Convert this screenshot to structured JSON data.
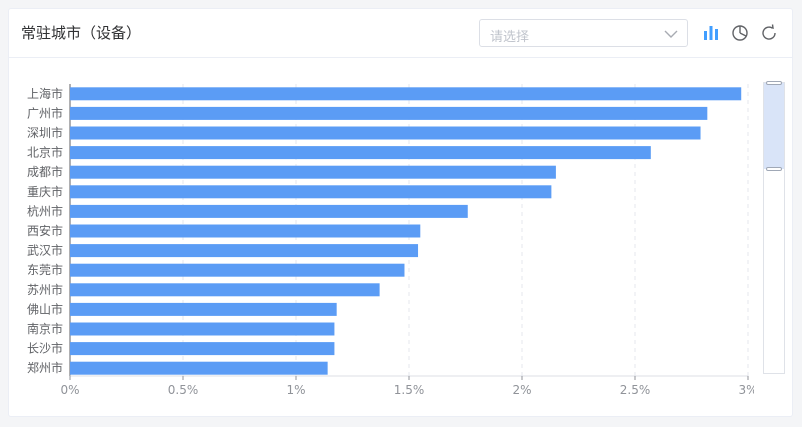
{
  "card": {
    "title": "常驻城市（设备）",
    "select_placeholder": "请选择"
  },
  "toolbar": {
    "icons": [
      "bar-chart-icon",
      "pie-chart-icon",
      "refresh-icon"
    ]
  },
  "colors": {
    "bar": "#5b9cf5",
    "accent": "#409eff",
    "axis_text": "#909399",
    "label_text": "#606266"
  },
  "chart_data": {
    "type": "bar",
    "orientation": "horizontal",
    "categories": [
      "上海市",
      "广州市",
      "深圳市",
      "北京市",
      "成都市",
      "重庆市",
      "杭州市",
      "西安市",
      "武汉市",
      "东莞市",
      "苏州市",
      "佛山市",
      "南京市",
      "长沙市",
      "郑州市"
    ],
    "values": [
      2.97,
      2.82,
      2.79,
      2.57,
      2.15,
      2.13,
      1.76,
      1.55,
      1.54,
      1.48,
      1.37,
      1.18,
      1.17,
      1.17,
      1.14
    ],
    "xlim": [
      0,
      3
    ],
    "ticks": [
      0,
      0.5,
      1,
      1.5,
      2,
      2.5,
      3
    ],
    "tick_labels": [
      "0%",
      "0.5%",
      "1%",
      "1.5%",
      "2%",
      "2.5%",
      "3%"
    ],
    "grid": "vertical dashed",
    "legend": "none",
    "zoom_slider": true
  }
}
